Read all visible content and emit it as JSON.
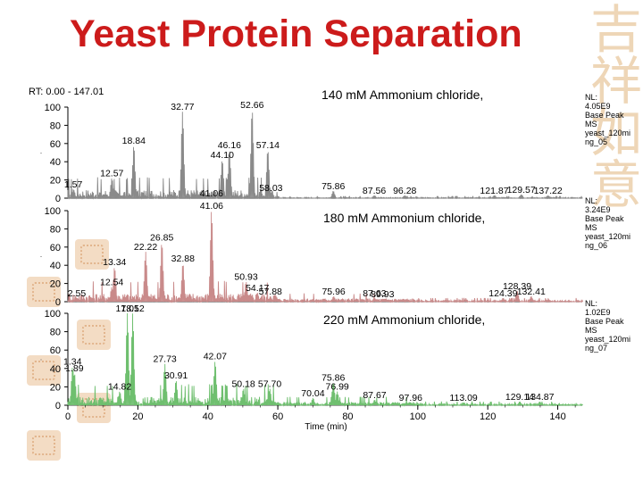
{
  "slide": {
    "title": "Yeast Protein Separation"
  },
  "chart_data": {
    "type": "line",
    "rt_label": "RT: 0.00 - 147.01",
    "xlabel": "Time (min)",
    "xlim": [
      0,
      147.01
    ],
    "x_ticks": [
      0,
      20,
      40,
      60,
      80,
      100,
      120,
      140
    ],
    "ylim": [
      0,
      100
    ],
    "y_ticks": [
      0,
      20,
      40,
      60,
      80,
      100
    ],
    "series": [
      {
        "name": "140 mM Ammonium chloride,",
        "color": "#8a8a8a",
        "nl": [
          "NL:",
          "4.05E9",
          "Base Peak",
          "MS",
          "yeast_120mi",
          "ng_05"
        ],
        "peaks": [
          {
            "x": 1.57,
            "y": 10
          },
          {
            "x": 12.57,
            "y": 22
          },
          {
            "x": 18.84,
            "y": 58
          },
          {
            "x": 32.77,
            "y": 95
          },
          {
            "x": 41.06,
            "y": 0
          },
          {
            "x": 44.1,
            "y": 42
          },
          {
            "x": 46.16,
            "y": 53
          },
          {
            "x": 52.66,
            "y": 97
          },
          {
            "x": 57.14,
            "y": 53
          },
          {
            "x": 58.03,
            "y": 6
          },
          {
            "x": 75.86,
            "y": 8
          },
          {
            "x": 87.56,
            "y": 3
          },
          {
            "x": 96.28,
            "y": 3
          },
          {
            "x": 121.87,
            "y": 3
          },
          {
            "x": 129.57,
            "y": 4
          },
          {
            "x": 137.22,
            "y": 3
          }
        ]
      },
      {
        "name": "180 mM Ammonium chloride,",
        "color": "#c98a8a",
        "nl": [
          "NL:",
          "3.24E9",
          "Base Peak",
          "MS",
          "yeast_120mi",
          "ng_06"
        ],
        "peaks": [
          {
            "x": 2.55,
            "y": 4
          },
          {
            "x": 12.54,
            "y": 16
          },
          {
            "x": 13.34,
            "y": 38
          },
          {
            "x": 22.22,
            "y": 55
          },
          {
            "x": 26.85,
            "y": 65
          },
          {
            "x": 32.88,
            "y": 42
          },
          {
            "x": 41.06,
            "y": 100
          },
          {
            "x": 50.93,
            "y": 22
          },
          {
            "x": 54.17,
            "y": 10
          },
          {
            "x": 57.88,
            "y": 6
          },
          {
            "x": 75.96,
            "y": 6
          },
          {
            "x": 87.63,
            "y": 4
          },
          {
            "x": 89.93,
            "y": 3
          },
          {
            "x": 124.39,
            "y": 4
          },
          {
            "x": 128.39,
            "y": 12
          },
          {
            "x": 132.41,
            "y": 6
          }
        ]
      },
      {
        "name": "220 mM Ammonium chloride,",
        "color": "#6fbf6f",
        "nl": [
          "NL:",
          "1.02E9",
          "Base Peak",
          "MS",
          "yeast_120mi",
          "ng_07"
        ],
        "peaks": [
          {
            "x": 1.34,
            "y": 42
          },
          {
            "x": 1.89,
            "y": 35
          },
          {
            "x": 14.82,
            "y": 15
          },
          {
            "x": 17.01,
            "y": 100
          },
          {
            "x": 18.52,
            "y": 100
          },
          {
            "x": 27.73,
            "y": 45
          },
          {
            "x": 30.91,
            "y": 27
          },
          {
            "x": 42.07,
            "y": 48
          },
          {
            "x": 50.18,
            "y": 18
          },
          {
            "x": 57.7,
            "y": 18
          },
          {
            "x": 70.04,
            "y": 8
          },
          {
            "x": 75.86,
            "y": 25
          },
          {
            "x": 76.99,
            "y": 15
          },
          {
            "x": 87.67,
            "y": 6
          },
          {
            "x": 97.96,
            "y": 3
          },
          {
            "x": 113.09,
            "y": 3
          },
          {
            "x": 129.14,
            "y": 4
          },
          {
            "x": 134.87,
            "y": 4
          }
        ]
      }
    ]
  }
}
